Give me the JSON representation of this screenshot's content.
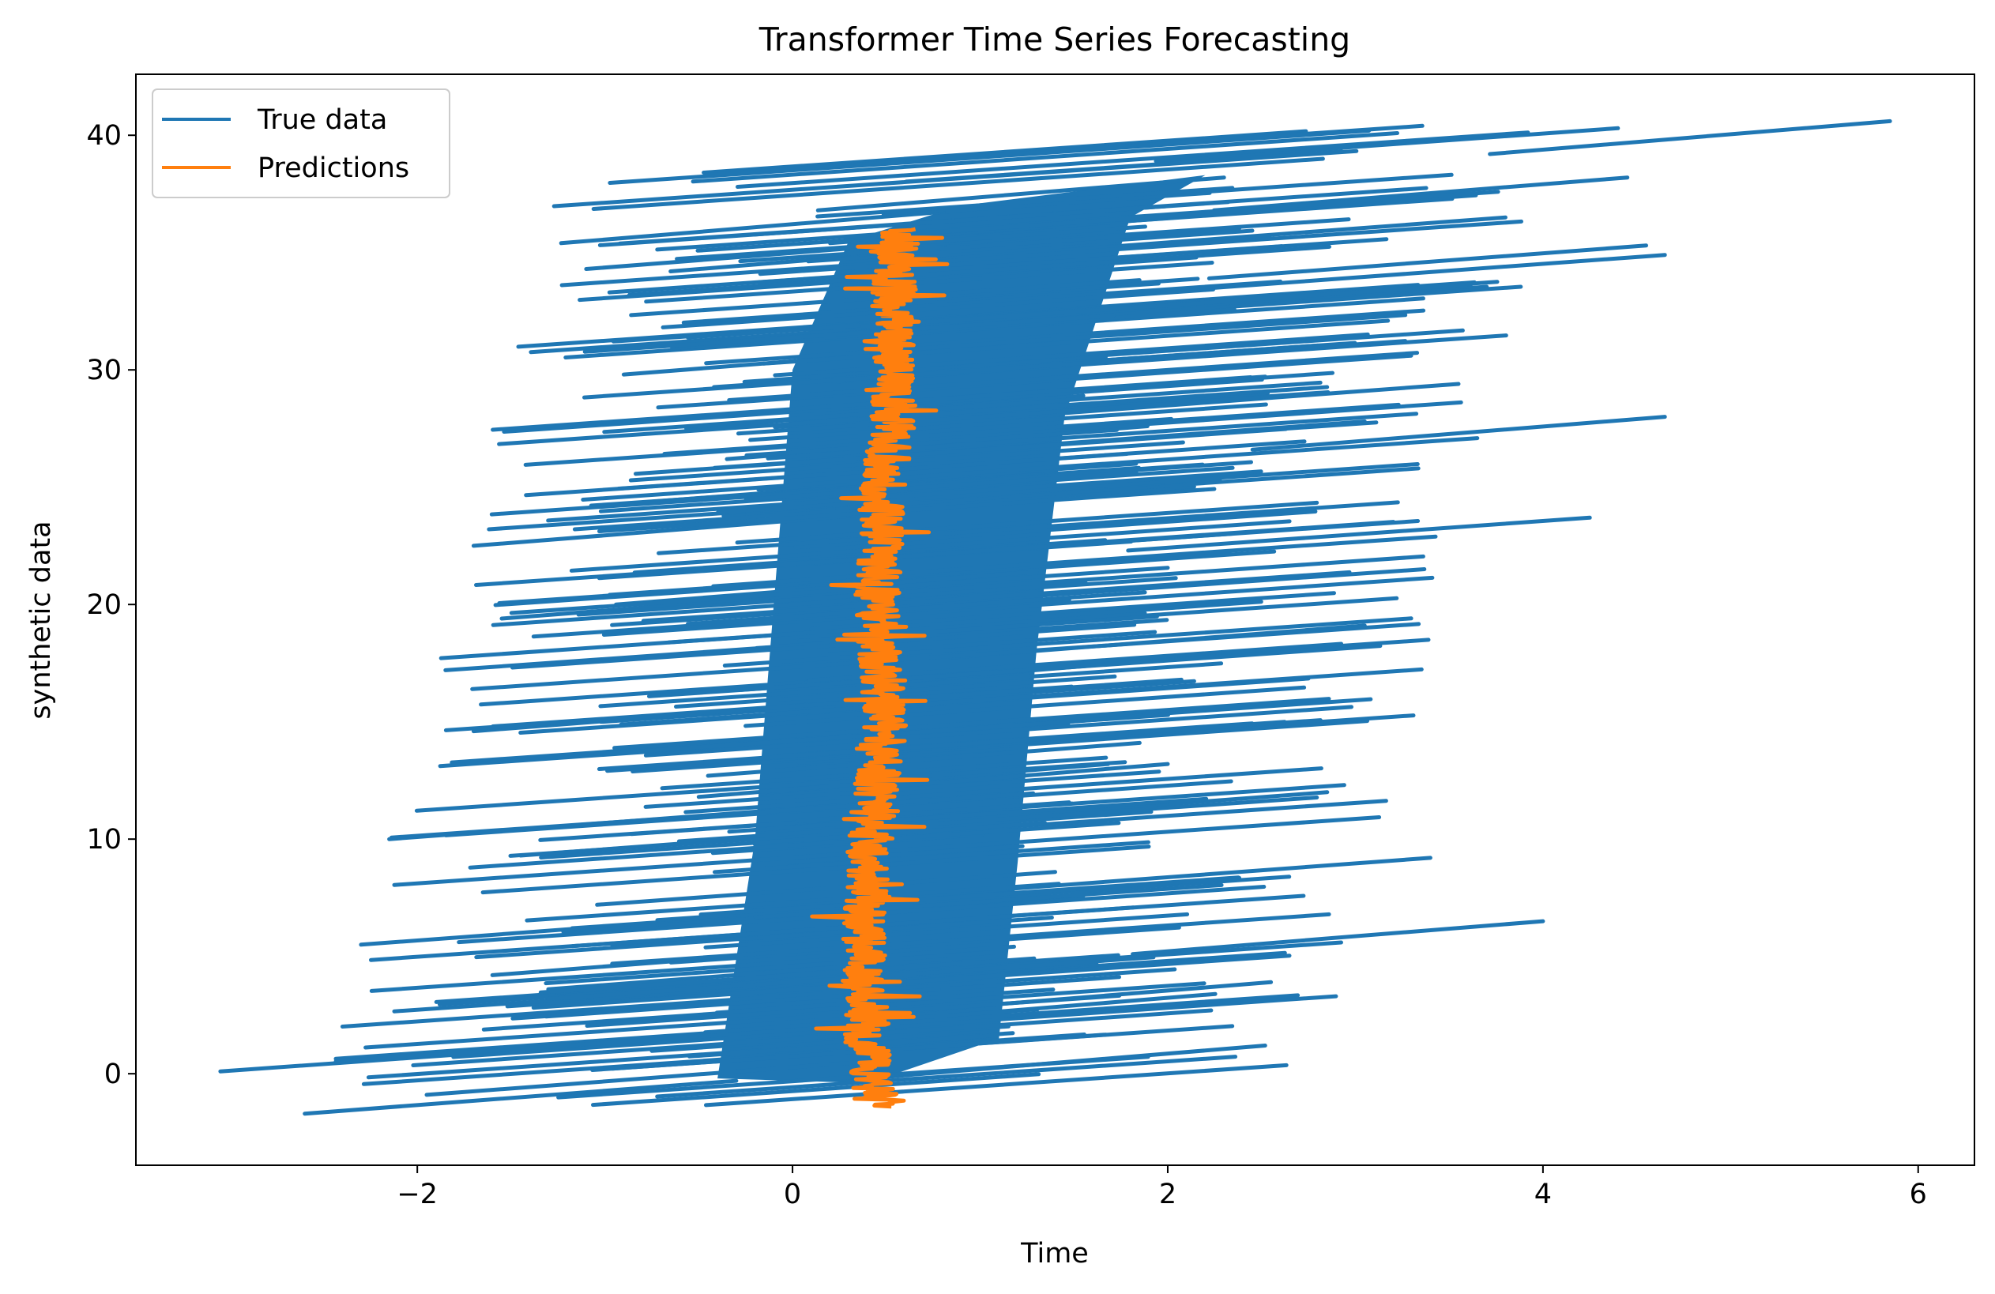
{
  "chart_data": {
    "type": "line",
    "title": "Transformer Time Series Forecasting",
    "xlabel": "Time",
    "ylabel": "synthetic data",
    "xlim": [
      -3.5,
      6.3
    ],
    "ylim": [
      -3.9,
      42.6
    ],
    "xticks": [
      {
        "value": -2,
        "label": "−2"
      },
      {
        "value": 0,
        "label": "0"
      },
      {
        "value": 2,
        "label": "2"
      },
      {
        "value": 4,
        "label": "4"
      },
      {
        "value": 6,
        "label": "6"
      }
    ],
    "yticks": [
      {
        "value": 0,
        "label": "0"
      },
      {
        "value": 10,
        "label": "10"
      },
      {
        "value": 20,
        "label": "20"
      },
      {
        "value": 30,
        "label": "30"
      },
      {
        "value": 40,
        "label": "40"
      }
    ],
    "grid": false,
    "legend_position": "upper-left",
    "series": [
      {
        "name": "True data",
        "color": "#1f77b4",
        "points": [
          [
            -3.05,
            0.1
          ],
          [
            -2.6,
            -1.7
          ],
          [
            -1.95,
            -0.9
          ],
          [
            -1.1,
            34.3
          ],
          [
            -2.15,
            10.0
          ],
          [
            -2.3,
            5.5
          ],
          [
            -1.7,
            22.5
          ],
          [
            -1.85,
            17.2
          ],
          [
            -1.55,
            19.4
          ],
          [
            -1.7,
            14.6
          ],
          [
            -0.9,
            29.8
          ],
          [
            -1.05,
            24.2
          ],
          [
            -0.7,
            31.0
          ],
          [
            -0.65,
            34.2
          ],
          [
            -0.35,
            26.2
          ],
          [
            -1.45,
            9.3
          ],
          [
            -1.6,
            4.2
          ],
          [
            -0.5,
            11.8
          ],
          [
            0.4,
            -0.2
          ],
          [
            0.1,
            2.0
          ],
          [
            1.0,
            5.0
          ],
          [
            0.2,
            35.4
          ],
          [
            1.3,
            21.4
          ],
          [
            1.4,
            8.6
          ],
          [
            1.55,
            28.9
          ],
          [
            1.85,
            14.1
          ],
          [
            0.9,
            36.8
          ],
          [
            2.3,
            38.2
          ],
          [
            2.0,
            13.2
          ],
          [
            2.5,
            18.0
          ],
          [
            3.4,
            9.2
          ],
          [
            4.0,
            6.5
          ],
          [
            2.55,
            3.9
          ],
          [
            3.05,
            27.8
          ],
          [
            4.25,
            23.7
          ],
          [
            4.65,
            28.0
          ],
          [
            4.55,
            35.3
          ],
          [
            4.65,
            34.9
          ],
          [
            5.85,
            40.6
          ],
          [
            4.4,
            40.3
          ],
          [
            4.45,
            38.2
          ],
          [
            3.8,
            36.5
          ],
          [
            3.55,
            29.4
          ],
          [
            3.05,
            19.1
          ],
          [
            2.85,
            12.0
          ]
        ]
      },
      {
        "name": "Predictions",
        "color": "#ff7f0e",
        "points": [
          [
            0.45,
            -1.4
          ],
          [
            0.4,
            0.4
          ],
          [
            0.38,
            5.2
          ],
          [
            0.42,
            10.6
          ],
          [
            0.5,
            15.2
          ],
          [
            0.45,
            19.9
          ],
          [
            0.48,
            24.8
          ],
          [
            0.55,
            28.6
          ],
          [
            0.52,
            32.6
          ],
          [
            0.6,
            36.0
          ]
        ]
      }
    ]
  }
}
